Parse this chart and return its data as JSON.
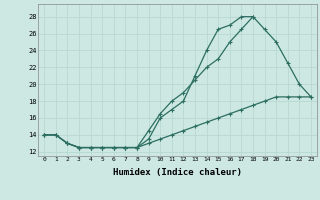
{
  "xlabel": "Humidex (Indice chaleur)",
  "ylabel": "",
  "background_color": "#cde8e2",
  "line_color": "#2d6e62",
  "grid_color": "#b8d8d2",
  "xlim": [
    -0.5,
    23.5
  ],
  "ylim": [
    11.5,
    29.5
  ],
  "yticks": [
    12,
    14,
    16,
    18,
    20,
    22,
    24,
    26,
    28
  ],
  "xticks": [
    0,
    1,
    2,
    3,
    4,
    5,
    6,
    7,
    8,
    9,
    10,
    11,
    12,
    13,
    14,
    15,
    16,
    17,
    18,
    19,
    20,
    21,
    22,
    23
  ],
  "line1_x": [
    0,
    1,
    2,
    3,
    4,
    5,
    6,
    7,
    8,
    9,
    10,
    11,
    12,
    13,
    14,
    15,
    16,
    17,
    18,
    19,
    20,
    21,
    22,
    23
  ],
  "line1_y": [
    14,
    14,
    13,
    12.5,
    12.5,
    12.5,
    12.5,
    12.5,
    12.5,
    14.5,
    16.5,
    18,
    19,
    20.5,
    22,
    23,
    25,
    26.5,
    28,
    26.5,
    25,
    22.5,
    20,
    18.5
  ],
  "line2_x": [
    0,
    1,
    2,
    3,
    4,
    5,
    6,
    7,
    8,
    9,
    10,
    11,
    12,
    13,
    14,
    15,
    16,
    17,
    18
  ],
  "line2_y": [
    14,
    14,
    13,
    12.5,
    12.5,
    12.5,
    12.5,
    12.5,
    12.5,
    13.5,
    16,
    17,
    18,
    21,
    24,
    26.5,
    27,
    28,
    28
  ],
  "line3_x": [
    0,
    1,
    2,
    3,
    4,
    5,
    6,
    7,
    8,
    9,
    10,
    11,
    12,
    13,
    14,
    15,
    16,
    17,
    18,
    19,
    20,
    21,
    22,
    23
  ],
  "line3_y": [
    14,
    14,
    13,
    12.5,
    12.5,
    12.5,
    12.5,
    12.5,
    12.5,
    13,
    13.5,
    14,
    14.5,
    15,
    15.5,
    16,
    16.5,
    17,
    17.5,
    18,
    18.5,
    18.5,
    18.5,
    18.5
  ]
}
